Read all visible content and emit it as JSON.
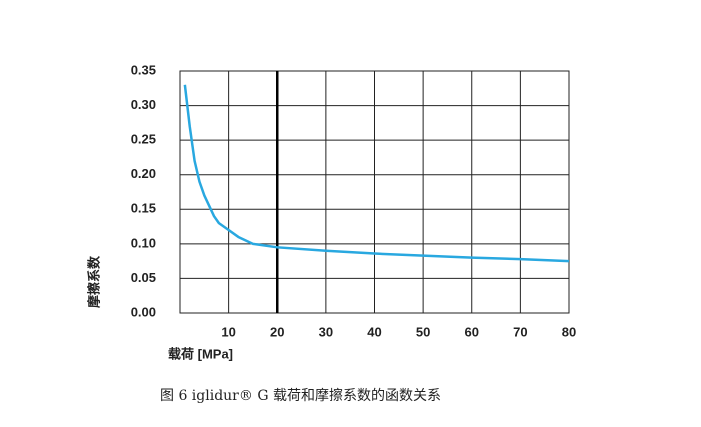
{
  "chart_data": {
    "type": "line",
    "x_label": "载荷 [MPa]",
    "y_label": "摩擦系数",
    "caption": "图 6  iglidur® G 载荷和摩擦系数的函数关系",
    "x": [
      1,
      2,
      3,
      4,
      5,
      6,
      7,
      8,
      10,
      12,
      15,
      20,
      30,
      40,
      50,
      60,
      70,
      80
    ],
    "series": [
      {
        "color": "#29a8e0",
        "values": [
          0.33,
          0.27,
          0.22,
          0.19,
          0.17,
          0.155,
          0.14,
          0.13,
          0.12,
          0.11,
          0.1,
          0.095,
          0.09,
          0.086,
          0.083,
          0.08,
          0.078,
          0.075
        ]
      }
    ],
    "xlim": [
      0,
      80
    ],
    "xticks": [
      10,
      20,
      30,
      40,
      50,
      60,
      70,
      80
    ],
    "ylim": [
      0,
      0.35
    ],
    "yticks": [
      {
        "value": 0,
        "label": "0.00"
      },
      0.05,
      {
        "value": 0.1,
        "label": "0.10"
      },
      0.15,
      {
        "value": 0.2,
        "label": "0.20"
      },
      0.25,
      {
        "value": 0.3,
        "label": "0.30"
      },
      0.35
    ],
    "reference_line_x": 20,
    "grid": true
  }
}
